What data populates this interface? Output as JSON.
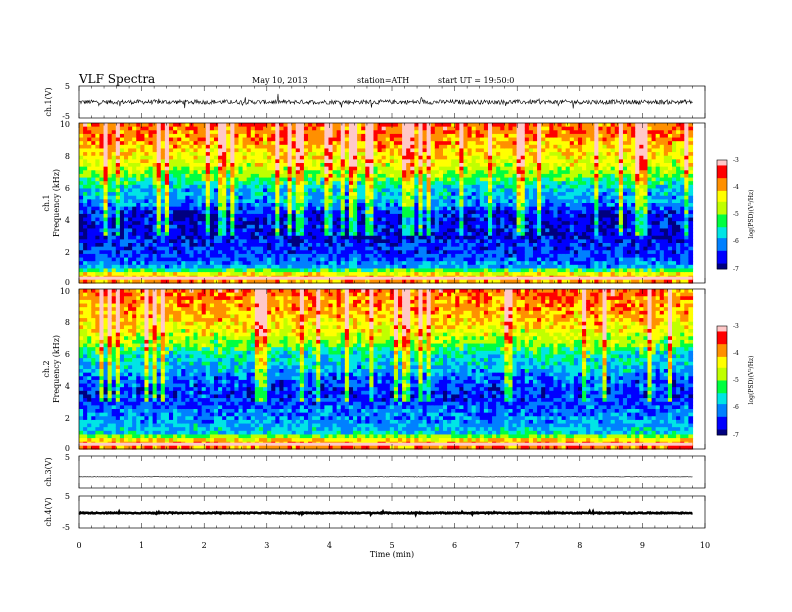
{
  "header": {
    "title": "VLF  Spectra",
    "date": "May 10, 2013",
    "station": "station=ATH",
    "start": "start  UT =  19:50:0"
  },
  "chart_data": [
    {
      "type": "line",
      "name": "ch1-waveform",
      "ylabel": "ch.1(V)",
      "ylim": [
        -5,
        5
      ],
      "yticks": [
        "5",
        "-5"
      ],
      "xlim": [
        0,
        10
      ],
      "x_extent": [
        0,
        9.8
      ],
      "baseline": 0,
      "noise_amplitude": 0.7
    },
    {
      "type": "heatmap",
      "name": "ch1-spectrogram",
      "ylabel_channel": "ch.1",
      "ylabel": "Frequency  (kHz)",
      "ylim": [
        0,
        10
      ],
      "yticks": [
        "0",
        "2",
        "4",
        "6",
        "8",
        "10"
      ],
      "xlim": [
        0,
        10
      ],
      "x_extent": [
        0,
        9.8
      ],
      "colorbar": {
        "label": "log(PSD)(V²/Hz)",
        "range": [
          -7,
          -3
        ],
        "ticks": [
          "-3",
          "-4",
          "-5",
          "-6",
          "-7"
        ]
      },
      "colormap": [
        "#000080",
        "#0000ff",
        "#0080ff",
        "#00e5e5",
        "#00ff40",
        "#c0ff00",
        "#ffff00",
        "#ff9000",
        "#ff0000",
        "#ffc8c8"
      ],
      "profile_log_psd": [
        [
          0.0,
          -3.8
        ],
        [
          0.5,
          -4.2
        ],
        [
          1.0,
          -5.9
        ],
        [
          1.5,
          -6.3
        ],
        [
          2.0,
          -6.4
        ],
        [
          2.5,
          -6.5
        ],
        [
          3.0,
          -6.7
        ],
        [
          3.5,
          -6.6
        ],
        [
          4.0,
          -6.7
        ],
        [
          4.5,
          -6.5
        ],
        [
          5.0,
          -6.0
        ],
        [
          5.5,
          -5.9
        ],
        [
          6.0,
          -5.7
        ],
        [
          6.5,
          -5.2
        ],
        [
          7.0,
          -4.8
        ],
        [
          7.5,
          -4.5
        ],
        [
          8.0,
          -4.3
        ],
        [
          8.5,
          -4.1
        ],
        [
          9.0,
          -3.9
        ],
        [
          9.5,
          -3.8
        ],
        [
          10.0,
          -3.7
        ]
      ]
    },
    {
      "type": "heatmap",
      "name": "ch2-spectrogram",
      "ylabel_channel": "ch.2",
      "ylabel": "Frequency  (kHz)",
      "ylim": [
        0,
        10
      ],
      "yticks": [
        "0",
        "2",
        "4",
        "6",
        "8",
        "10"
      ],
      "xlim": [
        0,
        10
      ],
      "x_extent": [
        0,
        9.8
      ],
      "colorbar": {
        "label": "log(PSD)(V²/Hz)",
        "range": [
          -7,
          -3
        ],
        "ticks": [
          "-3",
          "-4",
          "-5",
          "-6",
          "-7"
        ]
      },
      "colormap": [
        "#000080",
        "#0000ff",
        "#0080ff",
        "#00e5e5",
        "#00ff40",
        "#c0ff00",
        "#ffff00",
        "#ff9000",
        "#ff0000",
        "#ffc8c8"
      ],
      "profile_log_psd": [
        [
          0.0,
          -3.8
        ],
        [
          0.5,
          -4.0
        ],
        [
          1.0,
          -5.7
        ],
        [
          1.5,
          -5.9
        ],
        [
          2.0,
          -6.1
        ],
        [
          2.5,
          -6.2
        ],
        [
          3.0,
          -6.4
        ],
        [
          3.5,
          -6.5
        ],
        [
          4.0,
          -6.3
        ],
        [
          4.5,
          -6.2
        ],
        [
          5.0,
          -5.8
        ],
        [
          5.5,
          -5.7
        ],
        [
          6.0,
          -5.5
        ],
        [
          6.5,
          -5.0
        ],
        [
          7.0,
          -4.7
        ],
        [
          7.5,
          -4.4
        ],
        [
          8.0,
          -4.2
        ],
        [
          8.5,
          -4.0
        ],
        [
          9.0,
          -3.9
        ],
        [
          9.5,
          -3.8
        ],
        [
          10.0,
          -3.7
        ]
      ]
    },
    {
      "type": "line",
      "name": "ch3-waveform",
      "ylabel": "ch.3(V)",
      "ylim": [
        -5,
        5
      ],
      "yticks": [
        "5"
      ],
      "xlim": [
        0,
        10
      ],
      "x_extent": [
        0,
        9.8
      ],
      "baseline": -1.5,
      "noise_amplitude": 0.05
    },
    {
      "type": "line",
      "name": "ch4-waveform",
      "ylabel": "ch.4(V)",
      "ylim": [
        -5,
        5
      ],
      "yticks": [
        "5",
        "-5"
      ],
      "xlim": [
        0,
        10
      ],
      "x_extent": [
        0,
        9.8
      ],
      "baseline": -0.3,
      "noise_amplitude": 0.15
    }
  ],
  "xaxis": {
    "label": "Time  (min)",
    "ticks": [
      "0",
      "1",
      "2",
      "3",
      "4",
      "5",
      "6",
      "7",
      "8",
      "9",
      "10"
    ]
  }
}
